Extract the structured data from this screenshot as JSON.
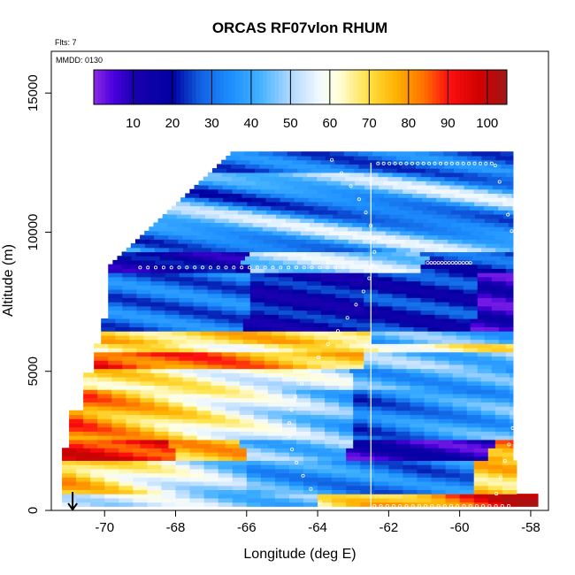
{
  "chart_data": {
    "type": "heatmap",
    "title": "ORCAS RF07vlon RHUM",
    "flights_label": "Flts: 7",
    "date_label": "MMDD: 0130",
    "xlabel": "Longitude (deg E)",
    "ylabel": "Altitude (m)",
    "xlim": [
      -71.5,
      -57.5
    ],
    "ylim": [
      0,
      16500
    ],
    "x_ticks": [
      -70,
      -68,
      -66,
      -64,
      -62,
      -60,
      -58
    ],
    "y_ticks": [
      0,
      5000,
      10000,
      15000
    ],
    "colorbar": {
      "min": 0,
      "max": 105,
      "ticks": [
        10,
        20,
        30,
        40,
        50,
        60,
        70,
        80,
        90,
        100
      ],
      "stops": [
        {
          "v": 0,
          "c": "#8a2be2"
        },
        {
          "v": 5,
          "c": "#4b00e0"
        },
        {
          "v": 10,
          "c": "#1a00b0"
        },
        {
          "v": 20,
          "c": "#0000a0"
        },
        {
          "v": 27,
          "c": "#1060e0"
        },
        {
          "v": 35,
          "c": "#1e90ff"
        },
        {
          "v": 42,
          "c": "#40b0ff"
        },
        {
          "v": 50,
          "c": "#b0d8ff"
        },
        {
          "v": 57,
          "c": "#f0f8ff"
        },
        {
          "v": 62,
          "c": "#ffffe0"
        },
        {
          "v": 70,
          "c": "#ffe040"
        },
        {
          "v": 77,
          "c": "#ffb000"
        },
        {
          "v": 84,
          "c": "#ff7000"
        },
        {
          "v": 90,
          "c": "#ff1010"
        },
        {
          "v": 98,
          "c": "#d00000"
        },
        {
          "v": 105,
          "c": "#a01818"
        }
      ]
    },
    "colors": {
      "marker": "#ffffff",
      "vertical_line": "#ffffff",
      "arrow": "#000000"
    },
    "vertical_line_x": -62.5,
    "arrow_x": -70.9
  }
}
